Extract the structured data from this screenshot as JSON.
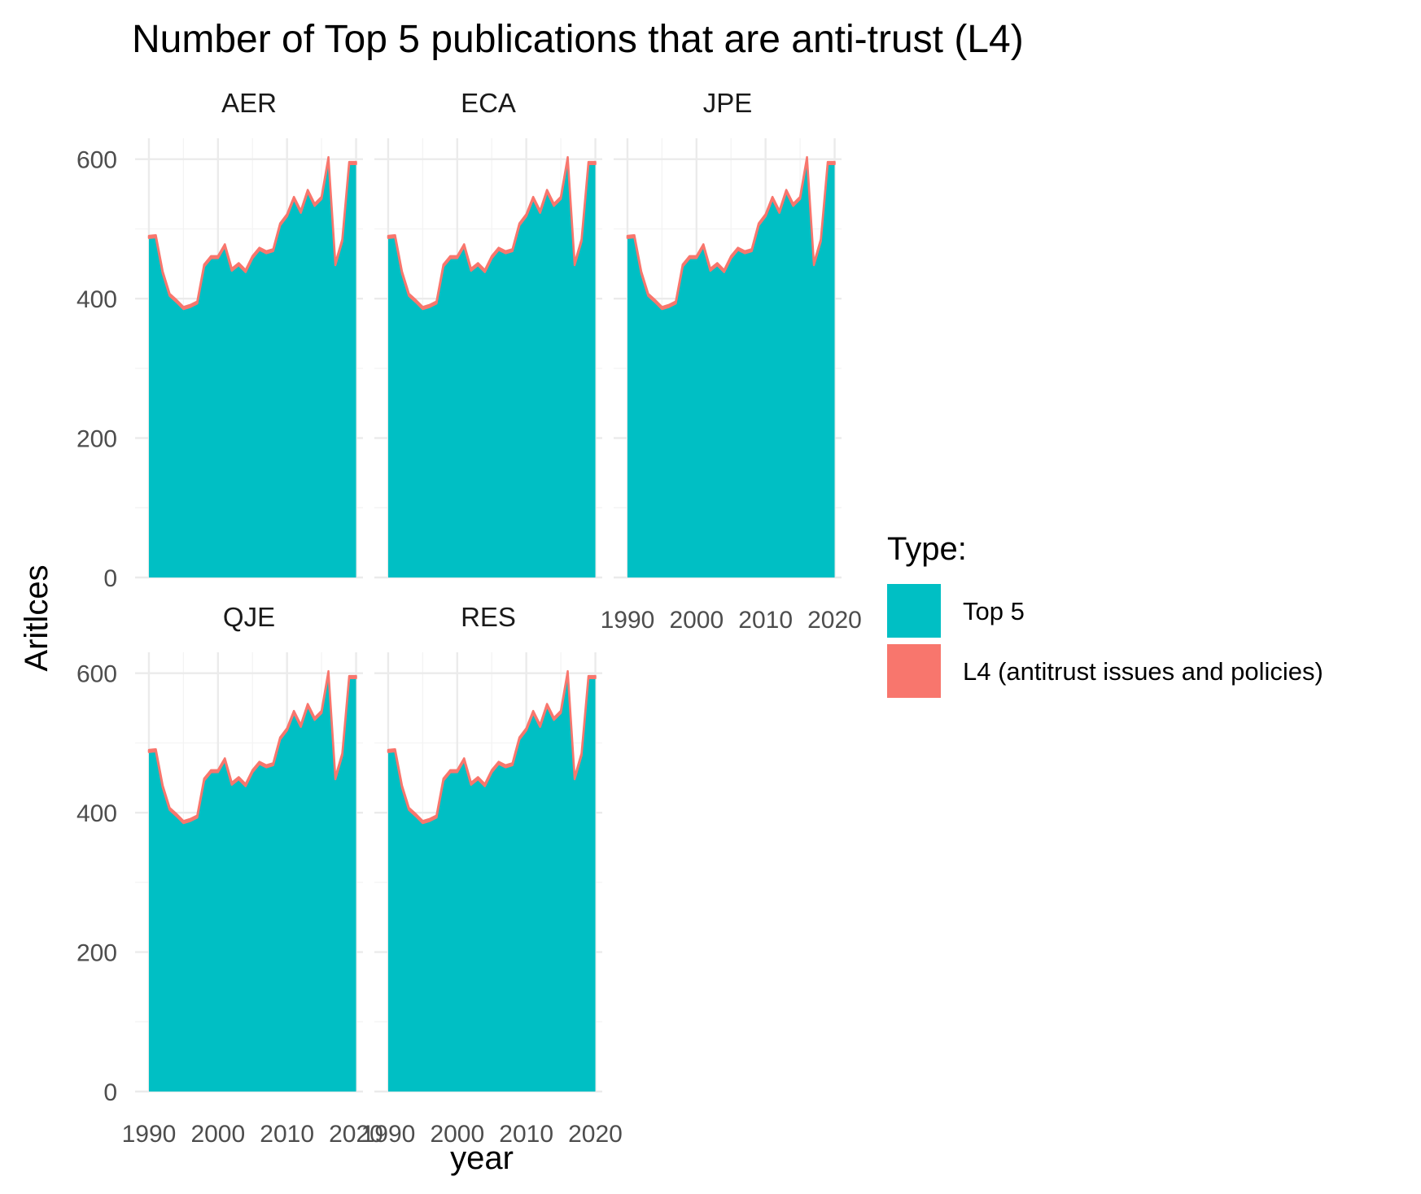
{
  "chart_data": {
    "type": "area",
    "title": "Number of Top 5 publications that are anti-trust (L4)",
    "xlabel": "year",
    "ylabel": "Aritlces",
    "xlim": [
      1988,
      2021
    ],
    "ylim": [
      0,
      630
    ],
    "x_ticks": [
      "1990",
      "2000",
      "2010",
      "2020"
    ],
    "y_ticks": [
      "0",
      "200",
      "400",
      "600"
    ],
    "grid": true,
    "legend": {
      "title": "Type:",
      "position": "right",
      "entries": [
        {
          "label": "Top 5",
          "color": "#00BFC4"
        },
        {
          "label": "L4 (antitrust issues and policies)",
          "color": "#F8766D"
        }
      ]
    },
    "facets": [
      "AER",
      "ECA",
      "JPE",
      "QJE",
      "RES"
    ],
    "x": [
      1990,
      1991,
      1992,
      1993,
      1994,
      1995,
      1996,
      1997,
      1998,
      1999,
      2000,
      2001,
      2002,
      2003,
      2004,
      2005,
      2006,
      2007,
      2008,
      2009,
      2010,
      2011,
      2012,
      2013,
      2014,
      2015,
      2016,
      2017,
      2018,
      2019,
      2020
    ],
    "series": [
      {
        "name": "Top 5",
        "values": [
          487,
          488,
          436,
          404,
          395,
          385,
          388,
          393,
          446,
          458,
          458,
          475,
          440,
          448,
          438,
          458,
          470,
          465,
          468,
          505,
          518,
          543,
          523,
          553,
          533,
          543,
          600,
          448,
          482,
          593,
          593
        ]
      },
      {
        "name": "L4 (antitrust issues and policies)",
        "values": [
          3,
          3,
          3,
          3,
          3,
          3,
          3,
          3,
          3,
          3,
          3,
          3,
          3,
          3,
          3,
          3,
          3,
          3,
          3,
          3,
          3,
          3,
          3,
          3,
          3,
          3,
          3,
          3,
          3,
          3,
          3
        ]
      }
    ]
  }
}
